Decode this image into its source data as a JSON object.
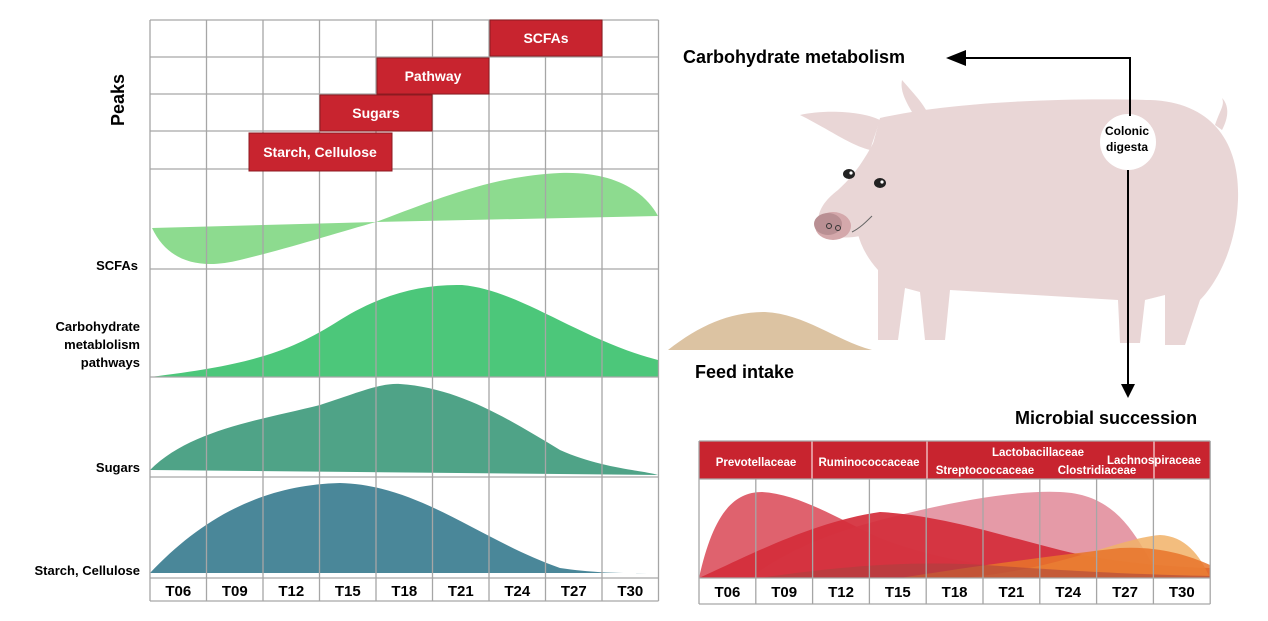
{
  "left_panel": {
    "peaks_title": "Peaks",
    "peak_boxes": [
      "SCFAs",
      "Pathway",
      "Sugars",
      "Starch, Cellulose"
    ],
    "row_labels": {
      "scfas": "SCFAs",
      "pathways": [
        "Carbohydrate",
        "metablolism",
        "pathways"
      ],
      "sugars": "Sugars",
      "starch": "Starch, Cellulose"
    },
    "time_points": [
      "T06",
      "T09",
      "T12",
      "T15",
      "T18",
      "T21",
      "T24",
      "T27",
      "T30"
    ]
  },
  "right_panel": {
    "carb_label": "Carbohydrate metabolism",
    "colonic": [
      "Colonic",
      "digesta"
    ],
    "feed_label": "Feed intake",
    "microbial_label": "Microbial succession",
    "families": {
      "prevotellaceae": "Prevotellaceae",
      "ruminococcaceae": "Ruminococcaceae",
      "lactobacillaceae": "Lactobacillaceae",
      "streptococcaceae": "Streptococcaceae",
      "clostridiaceae": "Clostridiaceae",
      "lachnospiraceae": "Lachnospiraceae"
    },
    "time_points": [
      "T06",
      "T09",
      "T12",
      "T15",
      "T18",
      "T21",
      "T24",
      "T27",
      "T30"
    ]
  },
  "colors": {
    "red_box": "#c8242f",
    "grid": "#a6a6a6",
    "scfa_green": "#8ddb8f",
    "pathway_green": "#4cc77a",
    "sugar_green": "#4fa387",
    "starch_teal": "#4a8799",
    "pig": "#e9d6d6",
    "feed": "#dcc3a2"
  }
}
